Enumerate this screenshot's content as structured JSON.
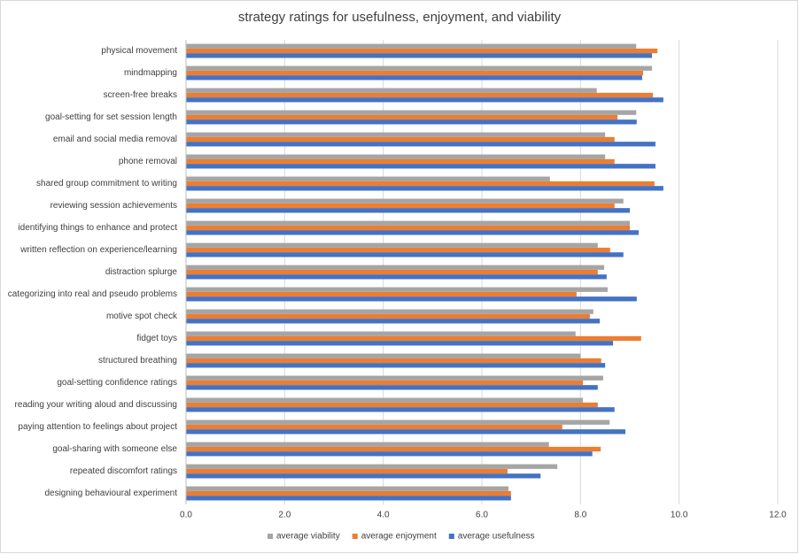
{
  "chart_data": {
    "type": "hbar",
    "title": "strategy ratings for usefulness, enjoyment, and viability",
    "categories": [
      "physical movement",
      "mindmapping",
      "screen-free breaks",
      "goal-setting for set session length",
      "email and social media removal",
      "phone removal",
      "shared group commitment to writing",
      "reviewing session achievements",
      "identifying things to enhance and protect",
      "written reflection on experience/learning",
      "distraction splurge",
      "categorizing into real and pseudo problems",
      "motive spot check",
      "fidget toys",
      "structured breathing",
      "goal-setting confidence ratings",
      "reading your writing aloud and discussing",
      "paying attention to feelings about project",
      "goal-sharing with someone else",
      "repeated discomfort ratings",
      "designing behavioural experiment"
    ],
    "series": [
      {
        "name": "average viability",
        "color": "#a5a5a5",
        "values": [
          9.13,
          9.45,
          8.33,
          9.13,
          8.5,
          8.5,
          7.38,
          8.87,
          9.0,
          8.35,
          8.48,
          8.55,
          8.26,
          7.9,
          8.0,
          8.46,
          8.05,
          8.59,
          7.36,
          7.53,
          6.54
        ]
      },
      {
        "name": "average enjoyment",
        "color": "#ed7d31",
        "values": [
          9.56,
          9.27,
          9.47,
          8.75,
          8.69,
          8.69,
          9.5,
          8.69,
          9.0,
          8.6,
          8.35,
          7.92,
          8.19,
          9.23,
          8.42,
          8.05,
          8.35,
          7.63,
          8.41,
          6.52,
          6.59
        ]
      },
      {
        "name": "average usefulness",
        "color": "#4472c4",
        "values": [
          9.45,
          9.25,
          9.68,
          9.14,
          9.52,
          9.52,
          9.68,
          9.0,
          9.18,
          8.87,
          8.53,
          9.14,
          8.39,
          8.66,
          8.5,
          8.35,
          8.69,
          8.91,
          8.24,
          7.19,
          6.59
        ]
      }
    ],
    "xlim": [
      0,
      12
    ],
    "xticks": [
      {
        "value": 0,
        "label": "0.0"
      },
      {
        "value": 2,
        "label": "2.0"
      },
      {
        "value": 4,
        "label": "4.0"
      },
      {
        "value": 6,
        "label": "6.0"
      },
      {
        "value": 8,
        "label": "8.0"
      },
      {
        "value": 10,
        "label": "10.0"
      },
      {
        "value": 12,
        "label": "12.0"
      }
    ],
    "grid": true,
    "legend": "bottom"
  }
}
